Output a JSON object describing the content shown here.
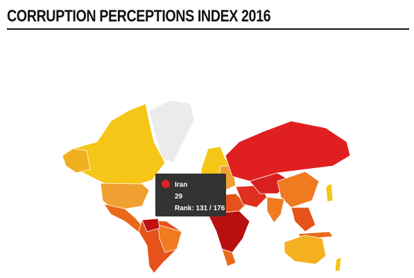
{
  "header": {
    "title": "CORRUPTION PERCEPTIONS INDEX 2016"
  },
  "tooltip": {
    "country": "Iran",
    "score": 29,
    "rank": "Rank: 131 / 176"
  }
}
